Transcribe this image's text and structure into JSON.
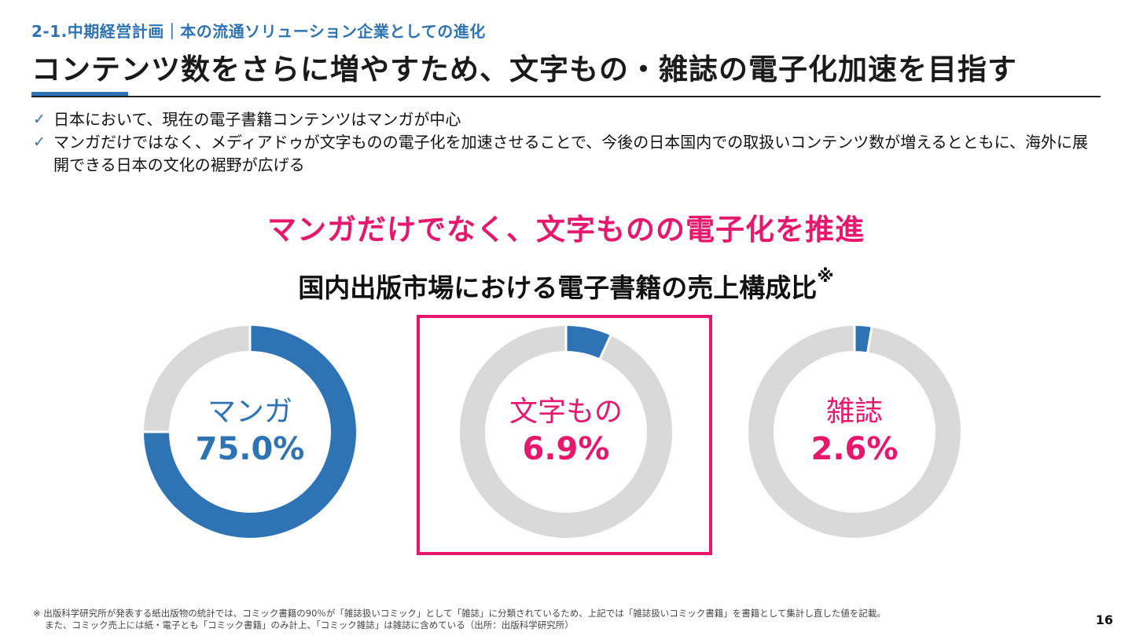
{
  "header": {
    "section": "2-1.中期経営計画｜本の流通ソリューション企業としての進化",
    "title": "コンテンツ数をさらに増やすため、文字もの・雑誌の電子化加速を目指す"
  },
  "bullets": [
    "日本において、現在の電子書籍コンテンツはマンガが中心",
    "マンガだけではなく、メディアドゥが文字ものの電子化を加速させることで、今後の日本国内での取扱いコンテンツ数が増えるとともに、海外に展開できる日本の文化の裾野が広げる"
  ],
  "headline": "マンガだけでなく、文字ものの電子化を推進",
  "chart_title": "国内出版市場における電子書籍の売上構成比",
  "chart_title_mark": "※",
  "colors": {
    "blue": "#2e74b5",
    "pink": "#e6176d",
    "track": "#d9d9d9"
  },
  "chart_data": {
    "type": "pie",
    "title": "国内出版市場における電子書籍の売上構成比※",
    "unit": "%",
    "items": [
      {
        "label": "マンガ",
        "value": 75.0,
        "value_label": "75.0%",
        "color": "#2e74b5",
        "highlighted": false
      },
      {
        "label": "文字もの",
        "value": 6.9,
        "value_label": "6.9%",
        "color": "#e6176d",
        "highlighted": true
      },
      {
        "label": "雑誌",
        "value": 2.6,
        "value_label": "2.6%",
        "color": "#e6176d",
        "highlighted": false
      }
    ]
  },
  "footnote": {
    "line1": "※ 出版科学研究所が発表する紙出版物の統計では、コミック書籍の90％が「雑誌扱いコミック」として「雑誌」に分類されているため、上記では「雑誌扱いコミック書籍」を書籍として集計し直した値を記載。",
    "line2": "また、コミック売上には紙・電子とも「コミック書籍」のみ計上、「コミック雑誌」は雑誌に含めている（出所：出版科学研究所）"
  },
  "page_number": "16"
}
